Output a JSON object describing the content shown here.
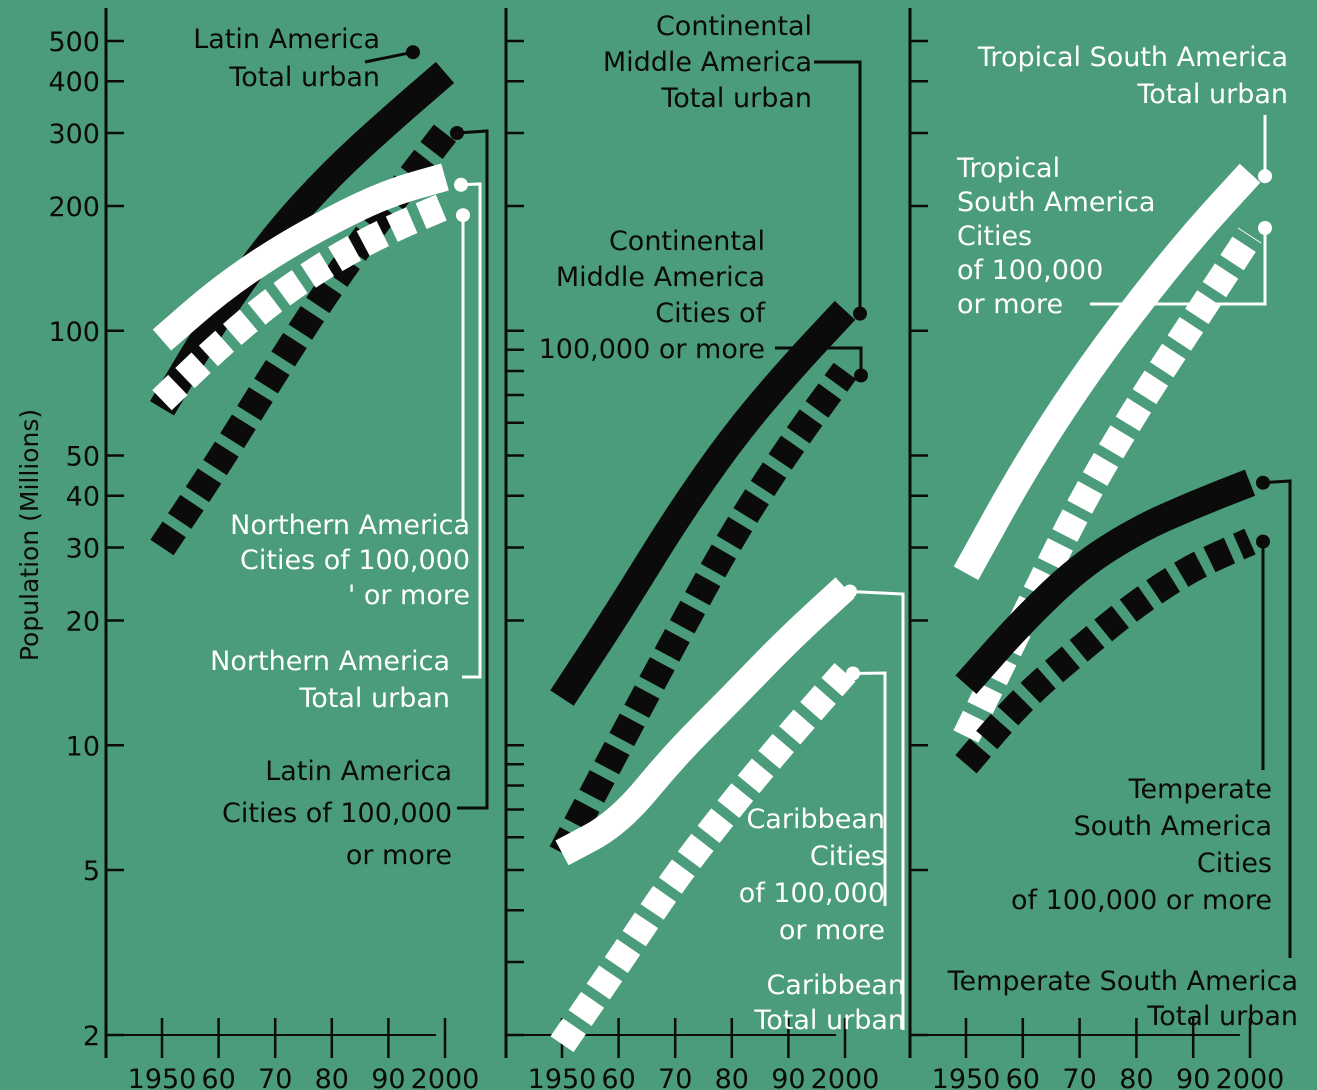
{
  "colors": {
    "background": "#4a9c7a",
    "dark": "#0b0b0b",
    "light": "#ffffff"
  },
  "chart_data": {
    "type": "line",
    "y_scale": "log",
    "ylabel": "Population (Millions)",
    "ylim": [
      1.8,
      560
    ],
    "xlim": [
      1948,
      2005
    ],
    "y_ticks": [
      2,
      5,
      10,
      20,
      30,
      40,
      50,
      100,
      200,
      300,
      400,
      500
    ],
    "x_tick_labels": [
      "1950",
      "60",
      "70",
      "80",
      "90",
      "2000"
    ],
    "panels": [
      {
        "series": [
          {
            "name": "Latin America Total urban",
            "color": "dark",
            "style": "solid",
            "x": [
              1950,
              1960,
              1970,
              1980,
              1990,
              2000
            ],
            "y": [
              65,
              110,
              170,
              240,
              320,
              420
            ]
          },
          {
            "name": "Latin America Cities of 100,000 or more",
            "color": "dark",
            "style": "dashed",
            "x": [
              1950,
              1960,
              1970,
              1980,
              1990,
              2000
            ],
            "y": [
              30,
              48,
              80,
              130,
              200,
              300
            ]
          },
          {
            "name": "Northern America Total urban",
            "color": "light",
            "style": "solid",
            "x": [
              1950,
              1960,
              1970,
              1980,
              1990,
              2000
            ],
            "y": [
              95,
              125,
              155,
              185,
              215,
              235
            ]
          },
          {
            "name": "Northern America Cities of 100,000 or more",
            "color": "light",
            "style": "dashed",
            "x": [
              1950,
              1960,
              1970,
              1980,
              1990,
              2000
            ],
            "y": [
              68,
              92,
              120,
              148,
              175,
              200
            ]
          }
        ],
        "labels": [
          {
            "lines": [
              "Latin America",
              "Total urban"
            ],
            "color": "dark"
          },
          {
            "lines": [
              "Northern America",
              "Cities of  100,000",
              "' or more"
            ],
            "color": "light"
          },
          {
            "lines": [
              "Northern America",
              "Total urban"
            ],
            "color": "light"
          },
          {
            "lines": [
              "Latin America",
              "Cities of 100,000",
              "or more"
            ],
            "color": "dark"
          }
        ]
      },
      {
        "series": [
          {
            "name": "Continental Middle America Total urban",
            "color": "dark",
            "style": "solid",
            "x": [
              1950,
              1960,
              1970,
              1980,
              1990,
              2000
            ],
            "y": [
              13,
              21,
              35,
              55,
              80,
              112
            ]
          },
          {
            "name": "Continental Middle America Cities of 100,000 or more",
            "color": "dark",
            "style": "dashed",
            "x": [
              1950,
              1960,
              1970,
              1980,
              1990,
              2000
            ],
            "y": [
              5.5,
              10,
              18,
              32,
              52,
              80
            ]
          },
          {
            "name": "Caribbean Total urban",
            "color": "light",
            "style": "solid",
            "x": [
              1950,
              1960,
              1970,
              1980,
              1990,
              2000
            ],
            "y": [
              5.5,
              6.5,
              9.5,
              13,
              18,
              24
            ]
          },
          {
            "name": "Caribbean Cities of 100,000 or more",
            "color": "light",
            "style": "dashed",
            "x": [
              1950,
              1960,
              1970,
              1980,
              1990,
              2000
            ],
            "y": [
              1.9,
              3.0,
              4.8,
              7.2,
              10.5,
              15
            ]
          }
        ],
        "labels": [
          {
            "lines": [
              "Continental",
              "Middle America",
              "Total urban"
            ],
            "color": "dark"
          },
          {
            "lines": [
              "Continental",
              "Middle America",
              "Cities of",
              "100,000 or more"
            ],
            "color": "dark"
          },
          {
            "lines": [
              "Caribbean",
              "Cities",
              "of 100,000",
              "or more"
            ],
            "color": "light"
          },
          {
            "lines": [
              "Caribbean",
              "Total urban"
            ],
            "color": "light"
          }
        ]
      },
      {
        "series": [
          {
            "name": "Tropical South America Total urban",
            "color": "light",
            "style": "solid",
            "x": [
              1950,
              1960,
              1970,
              1980,
              1990,
              2000
            ],
            "y": [
              26,
              46,
              75,
              115,
              170,
              240
            ]
          },
          {
            "name": "Tropical South America Cities of 100,000 or more",
            "color": "light",
            "style": "dashed",
            "x": [
              1950,
              1960,
              1970,
              1980,
              1990,
              2000
            ],
            "y": [
              10.5,
              20,
              38,
              65,
              105,
              170
            ]
          },
          {
            "name": "Temperate South America Total urban",
            "color": "dark",
            "style": "solid",
            "x": [
              1950,
              1960,
              1970,
              1980,
              1990,
              2000
            ],
            "y": [
              14,
              20,
              27,
              33,
              38,
              43
            ]
          },
          {
            "name": "Temperate South America Cities of 100,000 or more",
            "color": "dark",
            "style": "dashed",
            "x": [
              1950,
              1960,
              1970,
              1980,
              1990,
              2000
            ],
            "y": [
              9,
              13,
              17,
              22,
              27,
              31
            ]
          }
        ],
        "labels": [
          {
            "lines": [
              "Tropical South America",
              "Total urban"
            ],
            "color": "light"
          },
          {
            "lines": [
              "Tropical",
              "South America",
              "Cities",
              "of 100,000",
              "or more"
            ],
            "color": "light"
          },
          {
            "lines": [
              "Temperate",
              "South America",
              "Cities",
              "of 100,000 or more"
            ],
            "color": "dark"
          },
          {
            "lines": [
              "Temperate South America",
              "Total urban"
            ],
            "color": "dark"
          }
        ]
      }
    ]
  }
}
